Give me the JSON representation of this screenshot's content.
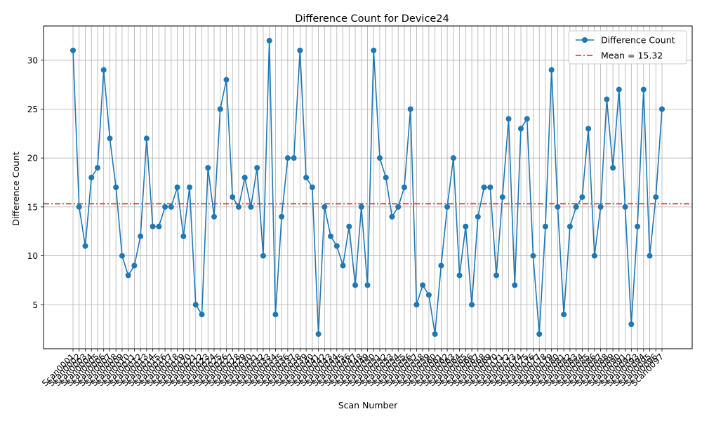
{
  "chart_data": {
    "type": "line",
    "title": "Difference Count for Device24",
    "xlabel": "Scan Number",
    "ylabel": "Difference Count",
    "categories": [
      "Scan0001",
      "Scan0002",
      "Scan0003",
      "Scan0004",
      "Scan0005",
      "Scan0006",
      "Scan0007",
      "Scan0008",
      "Scan0009",
      "Scan0010",
      "Scan0011",
      "Scan0012",
      "Scan0013",
      "Scan0014",
      "Scan0015",
      "Scan0016",
      "Scan0017",
      "Scan0018",
      "Scan0019",
      "Scan0020",
      "Scan0021",
      "Scan0022",
      "Scan0023",
      "Scan0024",
      "Scan0025",
      "Scan0026",
      "Scan0027",
      "Scan0028",
      "Scan0029",
      "Scan0030",
      "Scan0031",
      "Scan0032",
      "Scan0033",
      "Scan0034",
      "Scan0035",
      "Scan0036",
      "Scan0037",
      "Scan0038",
      "Scan0039",
      "Scan0040",
      "Scan0041",
      "Scan0042",
      "Scan0043",
      "Scan0044",
      "Scan0045",
      "Scan0046",
      "Scan0047",
      "Scan0048",
      "Scan0049",
      "Scan0050",
      "Scan0051",
      "Scan0052",
      "Scan0053",
      "Scan0054",
      "Scan0055",
      "Scan0056",
      "Scan0057",
      "Scan0058",
      "Scan0059",
      "Scan0060",
      "Scan0061",
      "Scan0062",
      "Scan0063",
      "Scan0064",
      "Scan0065",
      "Scan0066",
      "Scan0067",
      "Scan0068",
      "Scan0069",
      "Scan0070",
      "Scan0071",
      "Scan0072",
      "Scan0073",
      "Scan0074",
      "Scan0075",
      "Scan0076",
      "Scan0077",
      "Scan0078",
      "Scan0079",
      "Scan0080",
      "Scan0081",
      "Scan0082",
      "Scan0083",
      "Scan0084",
      "Scan0085",
      "Scan0086",
      "Scan0087",
      "Scan0088",
      "Scan0089",
      "Scan0090",
      "Scan0091",
      "Scan0092",
      "Scan0093",
      "Scan0094",
      "Scan0095",
      "Scan0096",
      "Scan0097"
    ],
    "series": [
      {
        "name": "Difference Count",
        "color": "#1f77b4",
        "values": [
          31,
          15,
          11,
          18,
          19,
          29,
          22,
          17,
          10,
          8,
          9,
          12,
          22,
          13,
          13,
          15,
          15,
          17,
          12,
          17,
          5,
          4,
          19,
          14,
          25,
          28,
          16,
          15,
          18,
          15,
          19,
          10,
          32,
          4,
          14,
          20,
          20,
          31,
          18,
          17,
          2,
          15,
          12,
          11,
          9,
          13,
          7,
          15,
          7,
          31,
          20,
          18,
          14,
          15,
          17,
          25,
          5,
          7,
          6,
          2,
          9,
          15,
          20,
          8,
          13,
          5,
          14,
          17,
          17,
          8,
          16,
          24,
          7,
          23,
          24,
          10,
          2,
          13,
          29,
          15,
          4,
          13,
          15,
          16,
          23,
          10,
          15,
          26,
          19,
          27,
          15,
          3,
          13,
          27,
          10,
          16,
          25
        ]
      }
    ],
    "mean_line": {
      "value": 15.32,
      "label": "Mean = 15.32",
      "color": "#d62728"
    },
    "yticks": [
      5,
      10,
      15,
      20,
      25,
      30
    ],
    "ylim": [
      0.5,
      33.5
    ],
    "grid": true,
    "legend_position": "top-right"
  }
}
